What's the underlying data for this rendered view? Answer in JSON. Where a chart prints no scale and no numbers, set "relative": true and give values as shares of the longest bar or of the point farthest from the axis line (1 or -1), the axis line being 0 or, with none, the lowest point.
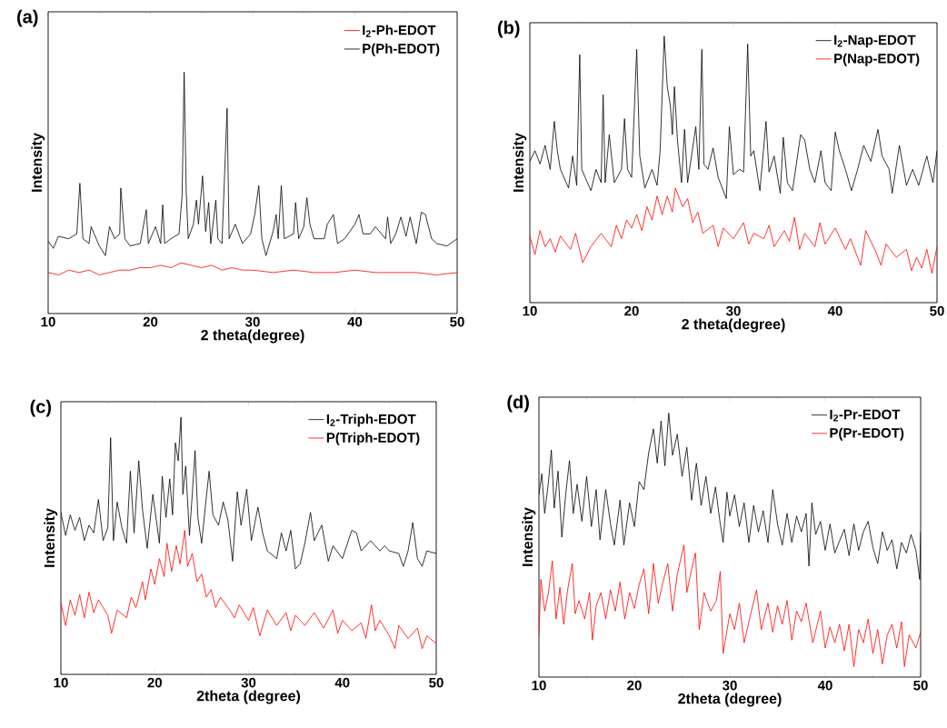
{
  "chart_data": [
    {
      "type": "line",
      "title": "(a)",
      "xlabel": "2 theta(degree)",
      "ylabel": "Intensity",
      "relative": true,
      "xlim": [
        10,
        50
      ],
      "xticks": [
        10,
        20,
        30,
        40,
        50
      ],
      "tick_labels": "x",
      "legend": "top right",
      "series": [
        {
          "name": "I$_{2}$-Ph-EDOT",
          "color": "#ff0000",
          "x": [
            10,
            11,
            12,
            13,
            14,
            15,
            16,
            17,
            18,
            19,
            20,
            21,
            22,
            23,
            24,
            25,
            26,
            27,
            28,
            29,
            30,
            32,
            34,
            36,
            38,
            40,
            42,
            44,
            46,
            48,
            50
          ],
          "values": [
            0.17,
            0.16,
            0.18,
            0.17,
            0.18,
            0.16,
            0.17,
            0.18,
            0.18,
            0.19,
            0.19,
            0.2,
            0.19,
            0.21,
            0.2,
            0.19,
            0.2,
            0.18,
            0.19,
            0.18,
            0.18,
            0.17,
            0.18,
            0.17,
            0.17,
            0.18,
            0.17,
            0.17,
            0.17,
            0.16,
            0.17
          ]
        },
        {
          "name": "P(Ph-EDOT)",
          "color": "#000000",
          "x": [
            10,
            10.5,
            11,
            12,
            12.8,
            13.1,
            13.4,
            14,
            14.2,
            15,
            15.6,
            16,
            16.5,
            17,
            17.1,
            17.5,
            18,
            19,
            19.6,
            19.8,
            20.5,
            21,
            21.2,
            21.4,
            22,
            22.8,
            23.1,
            23.3,
            23.5,
            23.7,
            24.2,
            24.5,
            24.7,
            25.1,
            25.4,
            25.7,
            25.9,
            26.4,
            26.6,
            27,
            27.5,
            27.7,
            28.3,
            29,
            29.8,
            30.2,
            30.6,
            30.9,
            31.3,
            32,
            32.3,
            32.5,
            32.8,
            33.1,
            34,
            34.2,
            34.5,
            35,
            35.3,
            35.6,
            36,
            37,
            37.3,
            37.9,
            38.3,
            39,
            40,
            40.4,
            40.8,
            41.5,
            42,
            43,
            43.2,
            43.5,
            44,
            44.5,
            45,
            45.4,
            46,
            46.5,
            46.9,
            47.5,
            48,
            49,
            50
          ],
          "values": [
            0.3,
            0.27,
            0.32,
            0.31,
            0.33,
            0.54,
            0.31,
            0.29,
            0.36,
            0.28,
            0.24,
            0.36,
            0.31,
            0.33,
            0.52,
            0.31,
            0.28,
            0.29,
            0.43,
            0.29,
            0.36,
            0.29,
            0.45,
            0.29,
            0.31,
            0.33,
            0.49,
            1,
            0.51,
            0.31,
            0.37,
            0.47,
            0.37,
            0.57,
            0.34,
            0.46,
            0.29,
            0.47,
            0.31,
            0.29,
            0.85,
            0.31,
            0.37,
            0.29,
            0.33,
            0.41,
            0.53,
            0.31,
            0.24,
            0.34,
            0.41,
            0.31,
            0.53,
            0.31,
            0.33,
            0.46,
            0.31,
            0.36,
            0.48,
            0.37,
            0.31,
            0.31,
            0.37,
            0.41,
            0.29,
            0.31,
            0.37,
            0.41,
            0.33,
            0.33,
            0.36,
            0.31,
            0.4,
            0.29,
            0.33,
            0.4,
            0.32,
            0.4,
            0.29,
            0.42,
            0.41,
            0.31,
            0.29,
            0.28,
            0.31
          ]
        }
      ]
    },
    {
      "type": "line",
      "title": "(b)",
      "xlabel": "2 theta(degree)",
      "ylabel": "Intensity",
      "relative": true,
      "xlim": [
        10,
        50
      ],
      "xticks": [
        10,
        20,
        30,
        40,
        50
      ],
      "tick_labels": "x",
      "legend": "top right",
      "series": [
        {
          "name": "I$_{2}$-Nap-EDOT",
          "color": "#000000",
          "x": [
            10,
            10.5,
            11,
            11.5,
            12,
            12.4,
            12.7,
            13,
            13.8,
            14.2,
            14.6,
            14.9,
            15.1,
            16,
            16.5,
            17,
            17.2,
            17.4,
            17.8,
            18.3,
            19,
            19.3,
            19.6,
            20,
            20.5,
            20.8,
            21.3,
            22,
            22.5,
            22.8,
            23.2,
            23.5,
            23.8,
            24.0,
            24.2,
            24.5,
            24.9,
            25.2,
            25.5,
            26.3,
            26.6,
            26.9,
            27.1,
            27.5,
            28,
            28.5,
            29.3,
            29.6,
            30,
            30.6,
            31,
            31.4,
            31.7,
            32,
            32.6,
            33.2,
            33.5,
            34,
            34.6,
            34.9,
            35.3,
            35.8,
            36.6,
            37,
            37.5,
            38,
            38.6,
            39,
            39.6,
            40,
            40.4,
            41,
            41.6,
            42.2,
            42.8,
            43.5,
            44.2,
            44.6,
            45.3,
            45.6,
            46.3,
            47,
            47.6,
            48.2,
            49,
            49.6,
            50
          ],
          "values": [
            0.53,
            0.57,
            0.52,
            0.59,
            0.5,
            0.68,
            0.57,
            0.5,
            0.43,
            0.55,
            0.44,
            0.93,
            0.5,
            0.42,
            0.5,
            0.45,
            0.78,
            0.45,
            0.63,
            0.45,
            0.5,
            0.69,
            0.5,
            0.47,
            0.95,
            0.55,
            0.43,
            0.5,
            0.44,
            0.57,
            1,
            0.81,
            0.74,
            0.63,
            0.81,
            0.61,
            0.45,
            0.65,
            0.45,
            0.66,
            0.5,
            0.95,
            0.52,
            0.5,
            0.58,
            0.47,
            0.39,
            0.66,
            0.48,
            0.5,
            0.49,
            0.97,
            0.55,
            0.57,
            0.42,
            0.68,
            0.49,
            0.55,
            0.41,
            0.62,
            0.45,
            0.42,
            0.63,
            0.61,
            0.5,
            0.45,
            0.57,
            0.45,
            0.42,
            0.64,
            0.57,
            0.5,
            0.42,
            0.5,
            0.59,
            0.53,
            0.65,
            0.55,
            0.5,
            0.41,
            0.59,
            0.44,
            0.5,
            0.44,
            0.55,
            0.45,
            0.57
          ]
        },
        {
          "name": "P(Nap-EDOT)",
          "color": "#ff0000",
          "x": [
            10,
            10.5,
            11,
            11.5,
            12,
            12.5,
            13,
            14,
            14.5,
            15.2,
            16,
            17,
            18,
            18.5,
            19,
            19.5,
            20,
            20.5,
            21,
            21.5,
            22,
            22.5,
            23,
            23.5,
            24,
            24.3,
            25,
            25.5,
            26,
            26.5,
            27,
            28,
            28.5,
            29,
            30,
            31,
            31.5,
            32,
            33,
            33.5,
            34,
            35,
            35.5,
            36,
            36.5,
            37,
            38,
            38.5,
            39,
            40,
            41,
            41.5,
            42.5,
            43,
            44,
            44.5,
            45,
            46,
            47,
            47.5,
            48,
            48.5,
            49,
            49.5,
            50
          ],
          "values": [
            0.25,
            0.18,
            0.27,
            0.21,
            0.24,
            0.19,
            0.25,
            0.2,
            0.26,
            0.15,
            0.21,
            0.26,
            0.21,
            0.29,
            0.24,
            0.31,
            0.28,
            0.33,
            0.27,
            0.36,
            0.31,
            0.4,
            0.33,
            0.4,
            0.34,
            0.43,
            0.36,
            0.39,
            0.3,
            0.34,
            0.26,
            0.29,
            0.21,
            0.28,
            0.24,
            0.3,
            0.22,
            0.26,
            0.24,
            0.29,
            0.21,
            0.27,
            0.23,
            0.32,
            0.2,
            0.26,
            0.21,
            0.3,
            0.22,
            0.28,
            0.2,
            0.24,
            0.14,
            0.27,
            0.19,
            0.14,
            0.22,
            0.17,
            0.2,
            0.12,
            0.17,
            0.13,
            0.2,
            0.11,
            0.21
          ]
        }
      ]
    },
    {
      "type": "line",
      "title": "(c)",
      "xlabel": "2theta (degree)",
      "ylabel": "Intensity",
      "relative": true,
      "xlim": [
        10,
        50
      ],
      "xticks": [
        10,
        20,
        30,
        40,
        50
      ],
      "tick_labels": "x",
      "legend": "top right",
      "series": [
        {
          "name": "I$_{2}$-Triph-EDOT",
          "color": "#000000",
          "x": [
            10,
            10.5,
            11,
            11.5,
            12,
            12.5,
            13,
            13.5,
            14,
            14.5,
            15,
            15.3,
            15.6,
            16,
            16.5,
            17,
            17.4,
            17.8,
            18.3,
            18.7,
            19.2,
            19.8,
            20.5,
            20.8,
            21.2,
            21.6,
            21.9,
            22.2,
            22.5,
            22.8,
            23,
            23.3,
            23.7,
            24,
            24.3,
            24.6,
            25,
            25.5,
            25.8,
            26.2,
            26.8,
            27.3,
            27.8,
            28.3,
            28.8,
            29.2,
            29.8,
            30.3,
            31,
            31.5,
            32,
            33,
            33.5,
            34,
            34.5,
            35,
            35.5,
            36,
            36.6,
            37,
            37.8,
            38.5,
            39,
            40,
            41,
            41.5,
            42,
            43,
            44,
            44.5,
            45,
            46,
            46.5,
            47,
            47.5,
            48,
            48.5,
            49,
            50
          ],
          "values": [
            0.63,
            0.54,
            0.62,
            0.56,
            0.61,
            0.52,
            0.58,
            0.55,
            0.68,
            0.52,
            0.57,
            0.92,
            0.52,
            0.67,
            0.57,
            0.51,
            0.79,
            0.55,
            0.83,
            0.64,
            0.49,
            0.7,
            0.51,
            0.77,
            0.61,
            0.76,
            0.62,
            0.9,
            0.83,
            1,
            0.7,
            0.81,
            0.54,
            0.7,
            0.87,
            0.61,
            0.51,
            0.69,
            0.79,
            0.62,
            0.58,
            0.67,
            0.6,
            0.44,
            0.71,
            0.58,
            0.72,
            0.52,
            0.65,
            0.55,
            0.48,
            0.45,
            0.55,
            0.48,
            0.56,
            0.41,
            0.43,
            0.51,
            0.63,
            0.52,
            0.58,
            0.44,
            0.5,
            0.45,
            0.56,
            0.55,
            0.48,
            0.52,
            0.48,
            0.5,
            0.48,
            0.47,
            0.42,
            0.48,
            0.59,
            0.45,
            0.42,
            0.48,
            0.47
          ]
        },
        {
          "name": "P(Triph-EDOT)",
          "color": "#ff0000",
          "x": [
            10,
            10.5,
            11,
            11.5,
            12,
            12.5,
            13,
            13.5,
            14,
            15,
            15.4,
            16,
            17,
            17.5,
            18,
            18.7,
            19,
            19.6,
            20,
            20.5,
            21,
            21.3,
            21.8,
            22.3,
            22.7,
            23.2,
            23.5,
            24,
            24.5,
            25,
            25.5,
            26,
            26.5,
            27,
            28,
            28.5,
            29,
            30,
            30.5,
            31.2,
            32,
            33,
            34,
            34.5,
            35,
            36,
            37,
            38,
            39,
            39.5,
            40,
            41,
            42,
            42.5,
            43.1,
            43.5,
            44,
            45,
            45.6,
            46,
            47,
            48,
            48.5,
            49,
            50
          ],
          "values": [
            0.28,
            0.19,
            0.29,
            0.23,
            0.31,
            0.22,
            0.32,
            0.24,
            0.29,
            0.23,
            0.16,
            0.25,
            0.22,
            0.3,
            0.26,
            0.36,
            0.29,
            0.41,
            0.35,
            0.45,
            0.38,
            0.51,
            0.4,
            0.5,
            0.43,
            0.56,
            0.42,
            0.47,
            0.36,
            0.39,
            0.3,
            0.33,
            0.26,
            0.3,
            0.25,
            0.22,
            0.27,
            0.21,
            0.26,
            0.15,
            0.25,
            0.19,
            0.24,
            0.17,
            0.23,
            0.19,
            0.24,
            0.18,
            0.25,
            0.16,
            0.21,
            0.17,
            0.2,
            0.14,
            0.27,
            0.17,
            0.21,
            0.15,
            0.1,
            0.19,
            0.14,
            0.18,
            0.1,
            0.15,
            0.12
          ]
        }
      ]
    },
    {
      "type": "line",
      "title": "(d)",
      "xlabel": "2theta (degree)",
      "ylabel": "Intensity",
      "relative": true,
      "xlim": [
        10,
        50
      ],
      "xticks": [
        10,
        20,
        30,
        40,
        50
      ],
      "tick_labels": "x",
      "legend": "top right",
      "series": [
        {
          "name": "I$_{2}$-Pr-EDOT",
          "color": "#000000",
          "x": [
            10,
            10.3,
            10.6,
            11,
            11.3,
            11.6,
            12,
            12.4,
            12.8,
            13.2,
            13.6,
            14,
            14.5,
            15,
            15.5,
            16,
            16.4,
            17,
            17.5,
            17.9,
            18.5,
            18.9,
            19.5,
            20,
            20.5,
            21,
            21.5,
            22,
            22.4,
            22.8,
            23.2,
            23.6,
            24,
            24.5,
            25,
            25.5,
            26,
            26.5,
            27,
            27.5,
            28,
            28.5,
            29,
            29.3,
            29.7,
            30,
            30.5,
            31,
            31.5,
            32,
            32.5,
            33,
            33.5,
            34,
            34.5,
            35,
            35.5,
            36,
            36.5,
            37,
            37.5,
            38,
            38.3,
            38.6,
            39,
            39.5,
            40,
            40.5,
            41,
            42,
            42.5,
            43,
            43.5,
            44,
            44.5,
            45,
            45.5,
            46,
            46.5,
            47,
            47.5,
            48,
            48.5,
            49,
            49.5,
            49.9,
            50
          ],
          "values": [
            0.69,
            0.77,
            0.62,
            0.74,
            0.86,
            0.64,
            0.78,
            0.53,
            0.69,
            0.82,
            0.62,
            0.73,
            0.59,
            0.76,
            0.57,
            0.71,
            0.52,
            0.71,
            0.58,
            0.5,
            0.67,
            0.5,
            0.66,
            0.57,
            0.74,
            0.71,
            0.85,
            0.94,
            0.81,
            0.97,
            0.8,
            1,
            0.84,
            0.92,
            0.76,
            0.87,
            0.67,
            0.81,
            0.65,
            0.76,
            0.62,
            0.72,
            0.58,
            0.51,
            0.7,
            0.61,
            0.69,
            0.57,
            0.66,
            0.51,
            0.65,
            0.55,
            0.63,
            0.51,
            0.71,
            0.58,
            0.5,
            0.62,
            0.51,
            0.61,
            0.55,
            0.62,
            0.42,
            0.66,
            0.54,
            0.59,
            0.48,
            0.58,
            0.47,
            0.56,
            0.46,
            0.58,
            0.48,
            0.55,
            0.59,
            0.49,
            0.43,
            0.55,
            0.48,
            0.52,
            0.41,
            0.51,
            0.47,
            0.54,
            0.48,
            0.37,
            0.55
          ]
        },
        {
          "name": "P(Pr-EDOT)",
          "color": "#ff0000",
          "x": [
            10,
            10.2,
            10.6,
            11,
            11.4,
            11.8,
            12.2,
            12.6,
            13,
            13.5,
            13.8,
            14.2,
            14.8,
            15.3,
            15.6,
            16,
            16.5,
            17,
            17.5,
            18,
            18.5,
            19,
            19.5,
            20,
            20.5,
            21,
            21.5,
            22,
            22.5,
            23,
            23.5,
            24,
            24.5,
            25.2,
            25.5,
            26,
            26.4,
            26.8,
            27.3,
            28,
            28.6,
            29,
            29.3,
            30,
            30.5,
            31,
            31.5,
            32,
            32.8,
            33.3,
            34,
            34.5,
            35,
            35.5,
            36,
            36.5,
            37,
            37.5,
            38,
            38.7,
            39.5,
            40,
            40.5,
            41,
            41.5,
            42,
            42.5,
            43,
            43.5,
            44,
            44.5,
            45,
            45.5,
            46,
            46.5,
            47,
            47.5,
            48,
            48.3,
            48.8,
            49.5,
            50
          ],
          "values": [
            0.16,
            0.37,
            0.25,
            0.32,
            0.44,
            0.22,
            0.34,
            0.2,
            0.33,
            0.43,
            0.24,
            0.29,
            0.22,
            0.32,
            0.14,
            0.27,
            0.32,
            0.22,
            0.33,
            0.25,
            0.36,
            0.22,
            0.32,
            0.26,
            0.35,
            0.41,
            0.24,
            0.43,
            0.28,
            0.36,
            0.43,
            0.25,
            0.39,
            0.5,
            0.32,
            0.41,
            0.47,
            0.18,
            0.32,
            0.25,
            0.29,
            0.4,
            0.09,
            0.24,
            0.18,
            0.28,
            0.13,
            0.21,
            0.33,
            0.18,
            0.28,
            0.17,
            0.27,
            0.2,
            0.29,
            0.14,
            0.25,
            0.21,
            0.28,
            0.13,
            0.25,
            0.11,
            0.19,
            0.13,
            0.2,
            0.1,
            0.2,
            0.04,
            0.18,
            0.13,
            0.22,
            0.09,
            0.18,
            0.05,
            0.16,
            0.2,
            0.11,
            0.21,
            0.04,
            0.16,
            0.11,
            0.17
          ]
        }
      ]
    }
  ]
}
